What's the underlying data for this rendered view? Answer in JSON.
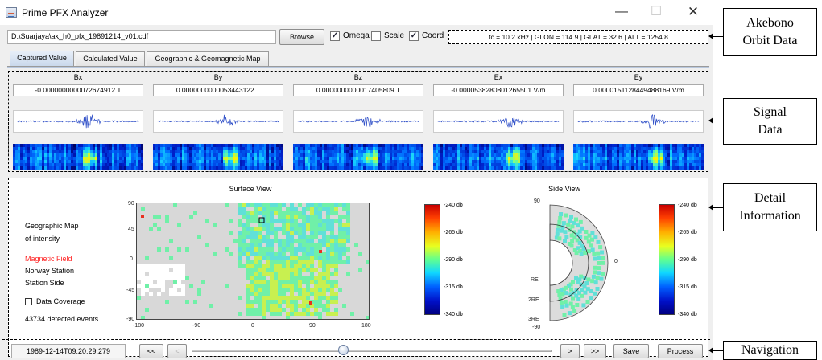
{
  "window": {
    "title": "Prime PFX Analyzer",
    "minimize": "—",
    "maximize": "☐",
    "close": "✕"
  },
  "toolbar": {
    "file_path": "D:\\Suarjaya\\ak_h0_pfx_19891214_v01.cdf",
    "browse_label": "Browse",
    "checkboxes": [
      {
        "label": "Omega",
        "checked": true
      },
      {
        "label": "Scale",
        "checked": false
      },
      {
        "label": "Coord",
        "checked": true
      }
    ],
    "orbit_readout": "fc = 10.2 kHz  |  GLON = 114.9  |  GLAT = 32.6  |  ALT = 1254.8"
  },
  "tabs": [
    "Captured Value",
    "Calculated Value",
    "Geographic & Geomagnetic Map"
  ],
  "signals": [
    {
      "name": "Bx",
      "value": "-0.0000000000072674912 T"
    },
    {
      "name": "By",
      "value": "0.0000000000053443122 T"
    },
    {
      "name": "Bz",
      "value": "0.0000000000017405809 T"
    },
    {
      "name": "Ex",
      "value": "-0.0000538280801265501 V/m"
    },
    {
      "name": "Ey",
      "value": "0.0000151128449488169 V/m"
    }
  ],
  "detail": {
    "legend": {
      "title_line1": "Geographic Map",
      "title_line2": "of intensity",
      "magnetic_field": "Magnetic Field",
      "norway_station": "Norway Station",
      "station_side": "Station Side",
      "data_coverage": "Data Coverage",
      "events": "43734 detected events"
    },
    "surface_view": {
      "title": "Surface View",
      "y_ticks": [
        "90",
        "45",
        "0",
        "-45",
        "-90"
      ],
      "x_ticks": [
        "-180",
        "-90",
        "0",
        "90",
        "180"
      ]
    },
    "side_view": {
      "title": "Side View",
      "left_ticks": [
        "90",
        "RE",
        "2RE",
        "3RE",
        "-90"
      ],
      "right_tick": "0"
    },
    "colorbar_ticks": [
      "-240 db",
      "-265 db",
      "-290 db",
      "-315 db",
      "-340 db"
    ]
  },
  "navigation": {
    "timestamp": "1989-12-14T09:20:29.279",
    "first": "<<",
    "prev": "<",
    "next": ">",
    "last": ">>",
    "save": "Save",
    "process": "Process",
    "slider_position": 0.42
  },
  "annotations": [
    {
      "line1": "Akebono",
      "line2": "Orbit Data"
    },
    {
      "line1": "Signal",
      "line2": "Data"
    },
    {
      "line1": "Detail",
      "line2": "Information"
    },
    {
      "line1": "Navigation",
      "line2": ""
    }
  ],
  "colors": {
    "magnetic_field_text": "#ff2020",
    "wave": "#3050c8"
  }
}
